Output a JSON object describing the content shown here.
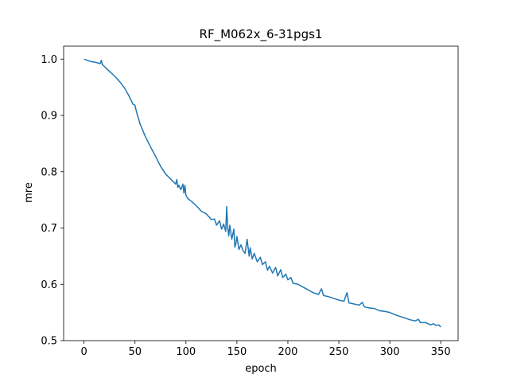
{
  "chart_data": {
    "type": "line",
    "title": "RF_M062x_6-31pgs1",
    "xlabel": "epoch",
    "ylabel": "mre",
    "xlim": [
      -20,
      367
    ],
    "ylim": [
      0.5,
      1.023
    ],
    "xticks": [
      0,
      50,
      100,
      150,
      200,
      250,
      300,
      350
    ],
    "yticks": [
      0.5,
      0.6,
      0.7,
      0.8,
      0.9,
      1.0
    ],
    "xtick_labels": [
      "0",
      "50",
      "100",
      "150",
      "200",
      "250",
      "300",
      "350"
    ],
    "ytick_labels": [
      "0.5",
      "0.6",
      "0.7",
      "0.8",
      "0.9",
      "1.0"
    ],
    "grid": false,
    "line_color": "#1f77b4",
    "series": [
      {
        "x": [
          0,
          3,
          6,
          9,
          12,
          14,
          16,
          17,
          18,
          20,
          25,
          30,
          35,
          40,
          44,
          48,
          50,
          51,
          52,
          55,
          58,
          60,
          65,
          70,
          75,
          80,
          85,
          90,
          91,
          92,
          93,
          95,
          97,
          98,
          99,
          100,
          102,
          105,
          110,
          115,
          120,
          125,
          128,
          130,
          133,
          135,
          137,
          139,
          140,
          141,
          142,
          143,
          145,
          147,
          148,
          149,
          150,
          152,
          154,
          156,
          158,
          160,
          162,
          163,
          165,
          167,
          170,
          173,
          175,
          178,
          180,
          182,
          185,
          188,
          190,
          193,
          195,
          198,
          200,
          203,
          205,
          210,
          215,
          220,
          225,
          230,
          233,
          235,
          240,
          245,
          250,
          255,
          258,
          260,
          265,
          270,
          273,
          275,
          280,
          285,
          290,
          295,
          300,
          305,
          310,
          315,
          320,
          325,
          328,
          330,
          335,
          340,
          343,
          345,
          348,
          350
        ],
        "y": [
          1.0,
          0.998,
          0.996,
          0.995,
          0.994,
          0.993,
          0.992,
          0.998,
          0.99,
          0.987,
          0.978,
          0.97,
          0.96,
          0.948,
          0.935,
          0.92,
          0.918,
          0.91,
          0.903,
          0.885,
          0.872,
          0.863,
          0.845,
          0.828,
          0.81,
          0.796,
          0.787,
          0.778,
          0.786,
          0.772,
          0.776,
          0.768,
          0.778,
          0.762,
          0.776,
          0.758,
          0.752,
          0.748,
          0.74,
          0.73,
          0.725,
          0.715,
          0.716,
          0.705,
          0.713,
          0.698,
          0.707,
          0.694,
          0.738,
          0.7,
          0.686,
          0.705,
          0.68,
          0.698,
          0.666,
          0.672,
          0.685,
          0.662,
          0.67,
          0.66,
          0.655,
          0.68,
          0.65,
          0.665,
          0.645,
          0.655,
          0.64,
          0.648,
          0.635,
          0.64,
          0.625,
          0.632,
          0.62,
          0.63,
          0.615,
          0.626,
          0.612,
          0.618,
          0.608,
          0.612,
          0.602,
          0.6,
          0.595,
          0.59,
          0.585,
          0.582,
          0.592,
          0.58,
          0.578,
          0.575,
          0.572,
          0.57,
          0.585,
          0.567,
          0.565,
          0.563,
          0.568,
          0.56,
          0.558,
          0.557,
          0.553,
          0.552,
          0.55,
          0.546,
          0.543,
          0.54,
          0.537,
          0.535,
          0.538,
          0.532,
          0.532,
          0.528,
          0.53,
          0.527,
          0.528,
          0.524
        ]
      }
    ]
  }
}
